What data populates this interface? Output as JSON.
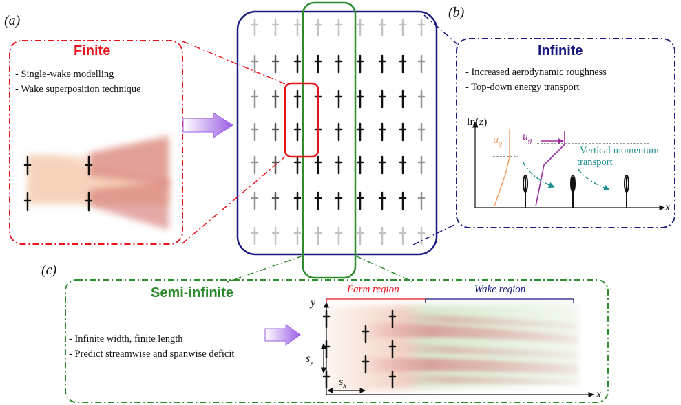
{
  "panels": {
    "a": "(a)",
    "b": "(b)",
    "c": "(c)"
  },
  "finite": {
    "title": "Finite",
    "bullets": [
      "-  Single-wake modelling",
      "- Wake superposition technique"
    ],
    "color": "#e8141c"
  },
  "infinite": {
    "title": "Infinite",
    "bullets": [
      "- Increased aerodynamic roughness",
      "- Top-down energy transport"
    ],
    "color": "#1a1a80",
    "plot": {
      "y_axis_label_prefix": "ln(",
      "y_axis_label_var": "z",
      "y_axis_label_suffix": ")",
      "x_axis_label": "x",
      "ug_label": "u",
      "ug_sub": "g",
      "transport_label_line1": "Vertical momentum",
      "transport_label_line2": "transport",
      "transport_color": "#1a8c8c"
    }
  },
  "semi_infinite": {
    "title": "Semi-infinite",
    "bullets": [
      "- Infinite width, finite length",
      "- Predict streamwise and spanwise deficit"
    ],
    "color": "#2e8b2e",
    "farm_region": "Farm region",
    "wake_region": "Wake region",
    "y_axis": "y",
    "x_axis": "x",
    "sy": "s",
    "sy_sub": "y",
    "sx": "s",
    "sx_sub": "x"
  },
  "colors": {
    "arrow": "#9b5de5",
    "center_frame": "#1a1a80",
    "column_frame": "#2e8b2e",
    "highlight": "#e8141c"
  }
}
